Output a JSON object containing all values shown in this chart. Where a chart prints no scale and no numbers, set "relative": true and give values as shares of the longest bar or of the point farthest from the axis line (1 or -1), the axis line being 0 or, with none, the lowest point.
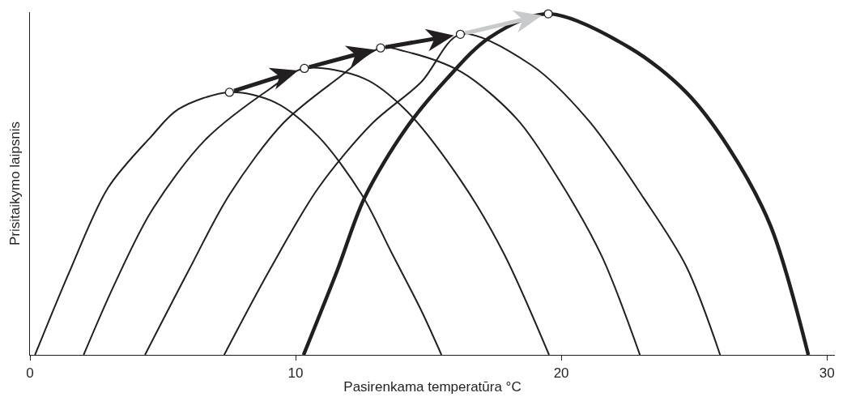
{
  "chart_data": {
    "type": "line",
    "xlabel": "Pasirenkama temperatūra °C",
    "ylabel": "Prisitaikymo laipsnis",
    "relative": true,
    "xlim": [
      0,
      30.3
    ],
    "xticks": [
      0,
      10,
      20,
      30
    ],
    "grid": false,
    "line_style": "solid",
    "series": [
      {
        "color": "#231f20",
        "x": [
          0.19,
          1.52,
          2.94,
          4.56,
          5.58,
          7.51,
          9.24,
          10.86,
          12.49,
          13.61,
          14.73,
          15.49
        ],
        "values": [
          0,
          0.25,
          0.49,
          0.64,
          0.72,
          0.77,
          0.74,
          0.64,
          0.47,
          0.3,
          0.13,
          0
        ]
      },
      {
        "color": "#231f20",
        "x": [
          2.02,
          3.14,
          4.56,
          6.59,
          9.03,
          10.33,
          12.59,
          14.12,
          16.23,
          17.82,
          19.54
        ],
        "values": [
          0,
          0.2,
          0.42,
          0.63,
          0.78,
          0.84,
          0.81,
          0.72,
          0.51,
          0.3,
          0
        ]
      },
      {
        "color": "#231f20",
        "x": [
          4.33,
          5.99,
          7.51,
          9.54,
          11.58,
          13.2,
          14.12,
          16.23,
          18.35,
          19.94,
          21.52,
          22.96
        ],
        "values": [
          0,
          0.25,
          0.47,
          0.68,
          0.81,
          0.9,
          0.89,
          0.83,
          0.69,
          0.51,
          0.29,
          0
        ]
      },
      {
        "color": "#231f20",
        "x": [
          7.31,
          9.03,
          10.86,
          12.9,
          14.73,
          16.2,
          18.87,
          21.0,
          23.1,
          24.7,
          25.98
        ],
        "values": [
          0,
          0.25,
          0.49,
          0.68,
          0.8,
          0.94,
          0.85,
          0.69,
          0.46,
          0.26,
          0
        ]
      },
      {
        "color": "#231f20",
        "x": [
          10.3,
          11.58,
          12.59,
          14.12,
          15.7,
          17.29,
          19.51,
          22.59,
          24.7,
          26.28,
          27.87,
          29.3
        ],
        "values": [
          0,
          0.25,
          0.46,
          0.66,
          0.81,
          0.93,
          1.0,
          0.9,
          0.77,
          0.61,
          0.38,
          0
        ]
      },
      {
        "type": "scatter",
        "marker": "circle",
        "color": "#ffffff",
        "x": [
          7.51,
          10.33,
          13.2,
          16.2,
          19.51
        ],
        "values": [
          0.77,
          0.84,
          0.9,
          0.94,
          1.0
        ]
      }
    ]
  }
}
